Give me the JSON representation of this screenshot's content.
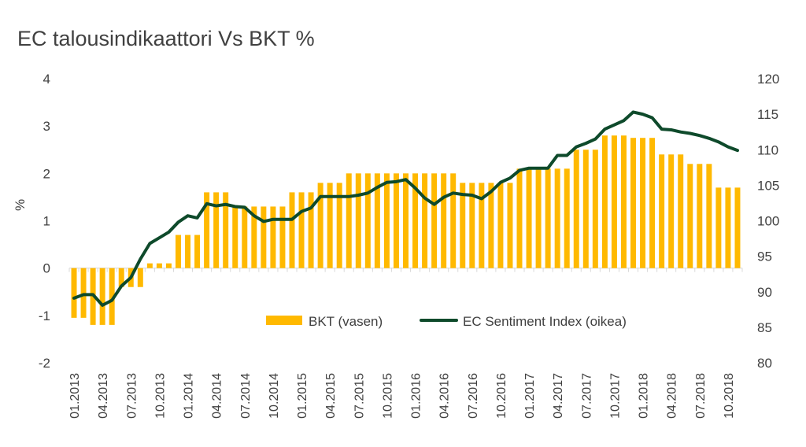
{
  "chart_data": {
    "type": "bar+line",
    "title": "EC talousindikaattori Vs BKT %",
    "ylabel_left": "%",
    "ylim_left": [
      -2,
      4
    ],
    "yticks_left": [
      "4",
      "3",
      "2",
      "1",
      "0",
      "-1",
      "-2"
    ],
    "ylim_right": [
      80,
      120
    ],
    "yticks_right": [
      "120",
      "115",
      "110",
      "105",
      "100",
      "95",
      "90",
      "85",
      "80"
    ],
    "x_tick_labels": [
      "01.2013",
      "04.2013",
      "07.2013",
      "10.2013",
      "01.2014",
      "04.2014",
      "07.2014",
      "10.2014",
      "01.2015",
      "04.2015",
      "07.2015",
      "10.2015",
      "01.2016",
      "04.2016",
      "07.2016",
      "10.2016",
      "01.2017",
      "04.2017",
      "07.2017",
      "10.2017",
      "01.2018",
      "04.2018",
      "07.2018",
      "10.2018"
    ],
    "legend_position": "lower-center",
    "colors": {
      "bar": "#FFB900",
      "line": "#0E4A2B",
      "axis": "#D9D9D9"
    },
    "series": [
      {
        "name": "BKT (vasen)",
        "axis": "left",
        "kind": "bar",
        "values": [
          -1.05,
          -1.05,
          -1.2,
          -1.2,
          -1.2,
          -0.4,
          -0.4,
          -0.4,
          0.1,
          0.1,
          0.1,
          0.7,
          0.7,
          0.7,
          1.6,
          1.6,
          1.6,
          1.3,
          1.3,
          1.3,
          1.3,
          1.3,
          1.3,
          1.6,
          1.6,
          1.6,
          1.8,
          1.8,
          1.8,
          2.0,
          2.0,
          2.0,
          2.0,
          2.0,
          2.0,
          2.0,
          2.0,
          2.0,
          2.0,
          2.0,
          2.0,
          1.8,
          1.8,
          1.8,
          1.8,
          1.8,
          1.8,
          2.1,
          2.1,
          2.1,
          2.1,
          2.1,
          2.1,
          2.5,
          2.5,
          2.5,
          2.8,
          2.8,
          2.8,
          2.75,
          2.75,
          2.75,
          2.4,
          2.4,
          2.4,
          2.2,
          2.2,
          2.2,
          1.7,
          1.7,
          1.7
        ]
      },
      {
        "name": "EC Sentiment Index (oikea)",
        "axis": "right",
        "kind": "line",
        "values": [
          89.1,
          89.6,
          89.6,
          88.1,
          88.8,
          90.8,
          92.0,
          94.6,
          96.8,
          97.6,
          98.4,
          99.8,
          100.7,
          100.4,
          102.4,
          102.1,
          102.3,
          102.0,
          101.9,
          100.7,
          99.9,
          100.2,
          100.2,
          100.2,
          101.3,
          101.8,
          103.4,
          103.4,
          103.4,
          103.4,
          103.6,
          103.9,
          104.7,
          105.4,
          105.5,
          105.8,
          104.6,
          103.2,
          102.3,
          103.3,
          103.9,
          103.7,
          103.6,
          103.1,
          104.1,
          105.4,
          106.0,
          107.1,
          107.4,
          107.4,
          107.4,
          109.2,
          109.2,
          110.4,
          110.9,
          111.5,
          112.9,
          113.5,
          114.1,
          115.3,
          115.0,
          114.5,
          112.9,
          112.8,
          112.5,
          112.3,
          112.0,
          111.6,
          111.1,
          110.4,
          109.9
        ]
      }
    ]
  }
}
